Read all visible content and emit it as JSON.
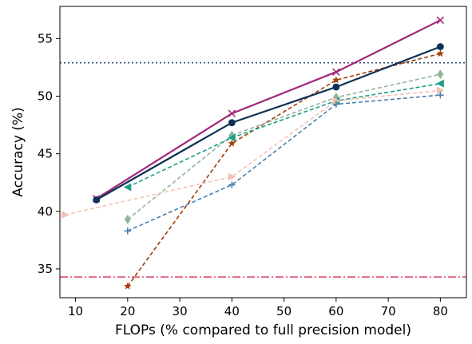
{
  "chart_data": {
    "type": "line",
    "xlabel": "FLOPs (% compared to full precision model)",
    "ylabel": "Accuracy (%)",
    "xlim": [
      7,
      85
    ],
    "ylim": [
      32.5,
      57.8
    ],
    "xticks": [
      10,
      20,
      30,
      40,
      50,
      60,
      70,
      80
    ],
    "yticks": [
      35,
      40,
      45,
      50,
      55
    ],
    "grid": false,
    "legend": "none",
    "reference_lines": [
      {
        "y": 52.9,
        "style": "dotted",
        "color": "#2e4a6b"
      },
      {
        "y": 34.3,
        "style": "dashdot",
        "color": "#e0506e"
      }
    ],
    "series": [
      {
        "x": [
          14,
          40,
          60,
          80
        ],
        "y": [
          41.1,
          48.5,
          52.1,
          56.6
        ],
        "style": "solid",
        "marker": "x",
        "color": "#a2287a"
      },
      {
        "x": [
          14,
          40,
          60,
          80
        ],
        "y": [
          41.0,
          47.7,
          50.8,
          54.3
        ],
        "style": "solid",
        "marker": "circle",
        "color": "#0d3154"
      },
      {
        "x": [
          20,
          40,
          60,
          80
        ],
        "y": [
          33.5,
          45.9,
          51.4,
          53.7
        ],
        "style": "dashed",
        "marker": "star",
        "color": "#a33b06"
      },
      {
        "x": [
          20,
          40,
          60,
          80
        ],
        "y": [
          39.3,
          46.6,
          49.9,
          51.9
        ],
        "style": "dashed",
        "marker": "diamond",
        "color": "#92b59a"
      },
      {
        "x": [
          20,
          40,
          60,
          80
        ],
        "y": [
          42.1,
          46.4,
          49.6,
          51.1
        ],
        "style": "dashed",
        "marker": "triangle-left",
        "color": "#1e9e85"
      },
      {
        "x": [
          8,
          40,
          60,
          80
        ],
        "y": [
          39.7,
          43.0,
          49.6,
          50.5
        ],
        "style": "dashed",
        "marker": "triangle-right",
        "color": "#f2c2b5"
      },
      {
        "x": [
          20,
          40,
          60,
          80
        ],
        "y": [
          38.3,
          42.3,
          49.3,
          50.1
        ],
        "style": "dashed",
        "marker": "plus",
        "color": "#4a7fae"
      }
    ]
  }
}
